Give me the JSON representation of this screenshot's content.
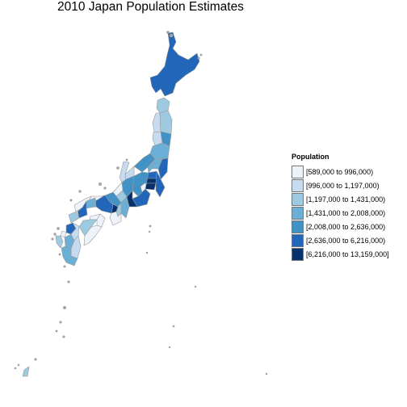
{
  "map": {
    "title": "2010 Japan Population Estimates",
    "legend": {
      "title": "Population",
      "placement": "right",
      "bins": [
        {
          "label": "[589,000 to 996,000)",
          "color": "#eef3fb"
        },
        {
          "label": "[996,000 to 1,197,000)",
          "color": "#c6dbef"
        },
        {
          "label": "[1,197,000 to 1,431,000)",
          "color": "#9ecae1"
        },
        {
          "label": "[1,431,000 to 2,008,000)",
          "color": "#6baed6"
        },
        {
          "label": "[2,008,000 to 2,636,000)",
          "color": "#4292c6"
        },
        {
          "label": "[2,636,000 to 6,216,000)",
          "color": "#2166b8"
        },
        {
          "label": "[6,216,000 to 13,159,000]",
          "color": "#08306b"
        }
      ]
    },
    "regions": [
      {
        "name": "Hokkaido",
        "bin": 5
      },
      {
        "name": "Aomori",
        "bin": 2
      },
      {
        "name": "Akita",
        "bin": 1
      },
      {
        "name": "Iwate",
        "bin": 2
      },
      {
        "name": "Yamagata",
        "bin": 1
      },
      {
        "name": "Miyagi",
        "bin": 4
      },
      {
        "name": "Fukushima",
        "bin": 3
      },
      {
        "name": "Niigata",
        "bin": 4
      },
      {
        "name": "Ibaraki",
        "bin": 5
      },
      {
        "name": "Tochigi",
        "bin": 3
      },
      {
        "name": "Gunma",
        "bin": 3
      },
      {
        "name": "Saitama",
        "bin": 5
      },
      {
        "name": "Tokyo",
        "bin": 6
      },
      {
        "name": "Chiba",
        "bin": 5
      },
      {
        "name": "Kanagawa",
        "bin": 6
      },
      {
        "name": "Nagano",
        "bin": 4
      },
      {
        "name": "Yamanashi",
        "bin": 0
      },
      {
        "name": "Shizuoka",
        "bin": 5
      },
      {
        "name": "Toyama",
        "bin": 1
      },
      {
        "name": "Ishikawa",
        "bin": 1
      },
      {
        "name": "Gifu",
        "bin": 4
      },
      {
        "name": "Fukui",
        "bin": 0
      },
      {
        "name": "Aichi",
        "bin": 6
      },
      {
        "name": "Shiga",
        "bin": 2
      },
      {
        "name": "Mie",
        "bin": 3
      },
      {
        "name": "Kyoto",
        "bin": 4
      },
      {
        "name": "Nara",
        "bin": 2
      },
      {
        "name": "Osaka",
        "bin": 6
      },
      {
        "name": "Hyogo",
        "bin": 5
      },
      {
        "name": "Wakayama",
        "bin": 0
      },
      {
        "name": "Tottori",
        "bin": 0
      },
      {
        "name": "Shimane",
        "bin": 0
      },
      {
        "name": "Okayama",
        "bin": 3
      },
      {
        "name": "Hiroshima",
        "bin": 5
      },
      {
        "name": "Yamaguchi",
        "bin": 2
      },
      {
        "name": "Kagawa",
        "bin": 0
      },
      {
        "name": "Tokushima",
        "bin": 0
      },
      {
        "name": "Ehime",
        "bin": 2
      },
      {
        "name": "Kochi",
        "bin": 0
      },
      {
        "name": "Fukuoka",
        "bin": 5
      },
      {
        "name": "Saga",
        "bin": 0
      },
      {
        "name": "Nagasaki",
        "bin": 2
      },
      {
        "name": "Kumamoto",
        "bin": 3
      },
      {
        "name": "Oita",
        "bin": 1
      },
      {
        "name": "Miyazaki",
        "bin": 1
      },
      {
        "name": "Kagoshima",
        "bin": 3
      },
      {
        "name": "Okinawa",
        "bin": 2
      }
    ]
  }
}
